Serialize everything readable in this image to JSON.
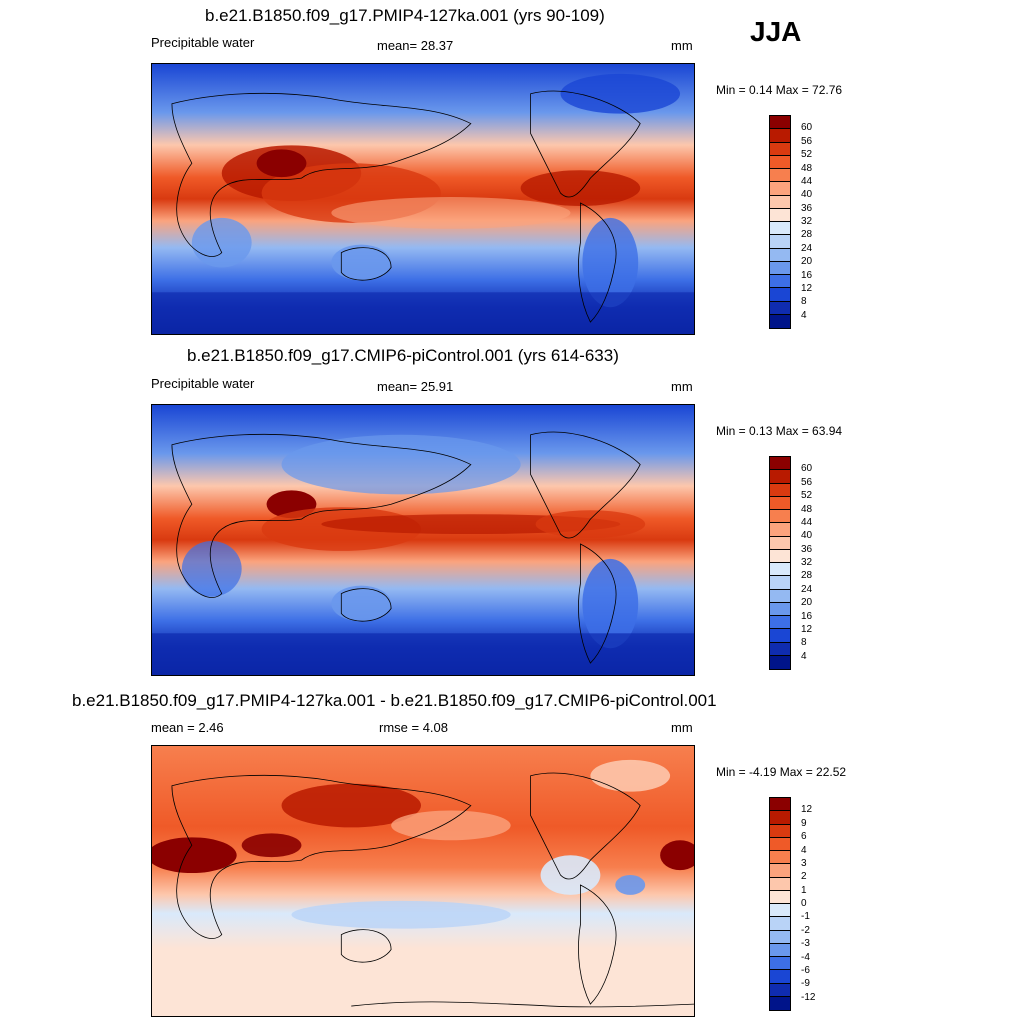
{
  "season": "JJA",
  "panels": [
    {
      "title": "b.e21.B1850.f09_g17.PMIP4-127ka.001 (yrs 90-109)",
      "left_label": "Precipitable water",
      "center_label": "mean=  28.37",
      "units": "mm",
      "minmax": "Min =   0.14 Max =  72.76",
      "colorbar": "abs"
    },
    {
      "title": "b.e21.B1850.f09_g17.CMIP6-piControl.001 (yrs 614-633)",
      "left_label": "Precipitable water",
      "center_label": "mean=  25.91",
      "units": "mm",
      "minmax": "Min =   0.13 Max =  63.94",
      "colorbar": "abs"
    },
    {
      "title": "b.e21.B1850.f09_g17.PMIP4-127ka.001 - b.e21.B1850.f09_g17.CMIP6-piControl.001",
      "left_label": "mean =   2.46",
      "center_label": "rmse =   4.08",
      "units": "mm",
      "minmax": "Min = -4.19 Max =  22.52",
      "colorbar": "diff"
    }
  ],
  "colorbars": {
    "abs": {
      "labels": [
        "60",
        "56",
        "52",
        "48",
        "44",
        "40",
        "36",
        "32",
        "28",
        "24",
        "20",
        "16",
        "12",
        "8",
        "4"
      ],
      "colors": [
        "#8b0000",
        "#b81a00",
        "#d93a10",
        "#ef5a28",
        "#f77f4e",
        "#fba37d",
        "#fdc7ac",
        "#fde4d6",
        "#d9e9fb",
        "#b9d3f7",
        "#94b9f2",
        "#6a98ec",
        "#3d6fe6",
        "#1a46d4",
        "#0f2cb0",
        "#00148a"
      ]
    },
    "diff": {
      "labels": [
        "12",
        "9",
        "6",
        "4",
        "3",
        "2",
        "1",
        "0",
        "-1",
        "-2",
        "-3",
        "-4",
        "-6",
        "-9",
        "-12"
      ],
      "colors": [
        "#8b0000",
        "#b81a00",
        "#d93a10",
        "#ef5a28",
        "#f77f4e",
        "#fba37d",
        "#fdc7ac",
        "#fde4d6",
        "#d9e9fb",
        "#b9d3f7",
        "#94b9f2",
        "#6a98ec",
        "#3d6fe6",
        "#1a46d4",
        "#0f2cb0",
        "#00148a"
      ]
    }
  }
}
